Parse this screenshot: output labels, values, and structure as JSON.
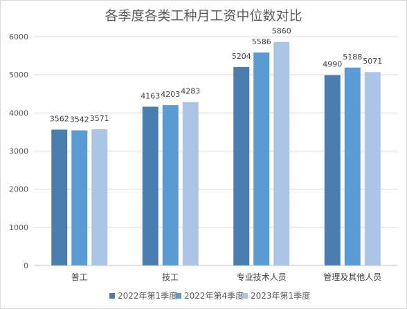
{
  "chart_data": {
    "type": "bar",
    "title": "各季度各类工种月工资中位数对比",
    "categories": [
      "普工",
      "技工",
      "专业技术人员",
      "管理及其他人员"
    ],
    "series": [
      {
        "name": "2022年第1季度",
        "values": [
          3562,
          4163,
          5204,
          4990
        ],
        "color": "#4a7db0"
      },
      {
        "name": "2022年第4季度",
        "values": [
          3542,
          4203,
          5586,
          5188
        ],
        "color": "#5b9bd5"
      },
      {
        "name": "2023年第1季度",
        "values": [
          3571,
          4283,
          5860,
          5071
        ],
        "color": "#abc3e4"
      }
    ],
    "ylim": [
      0,
      6000
    ],
    "yticks": [
      0,
      1000,
      2000,
      3000,
      4000,
      5000,
      6000
    ],
    "xlabel": "",
    "ylabel": "",
    "grid": true,
    "legend": "bottom"
  }
}
